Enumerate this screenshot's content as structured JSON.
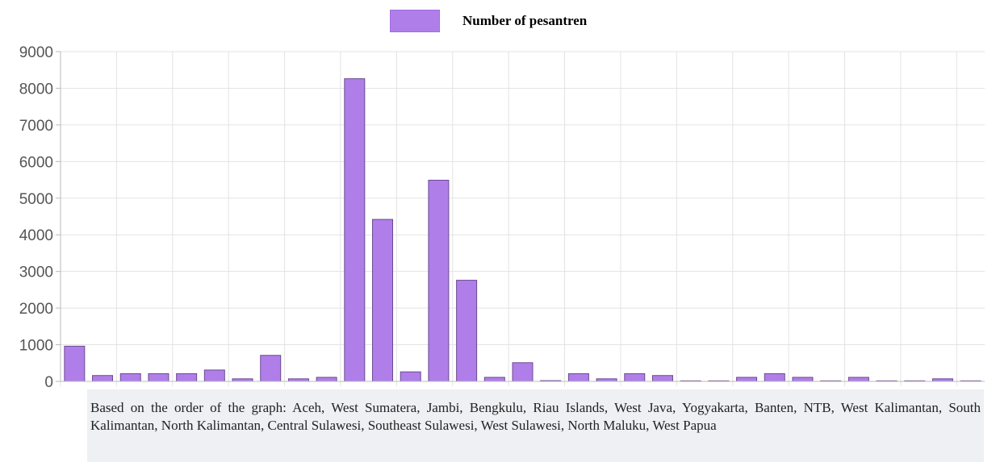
{
  "legend": {
    "label": "Number of pesantren",
    "color": "#b07ee8"
  },
  "caption": "Based on the order of the graph:  Aceh, West Sumatera, Jambi, Bengkulu, Riau Islands, West Java, Yogyakarta, Banten, NTB, West Kalimantan, South Kalimantan, North Kalimantan, Central Sulawesi, Southeast Sulawesi, West Sulawesi, North Maluku, West Papua",
  "chart_data": {
    "type": "bar",
    "title": "",
    "xlabel": "",
    "ylabel": "",
    "ylim": [
      0,
      9000
    ],
    "yticks": [
      0,
      1000,
      2000,
      3000,
      4000,
      5000,
      6000,
      7000,
      8000,
      9000
    ],
    "grid": true,
    "legend_position": "top",
    "bar_color": "#b07ee8",
    "bar_edge_color": "#6a4a92",
    "series": [
      {
        "name": "Number of pesantren",
        "values": [
          960,
          160,
          210,
          210,
          210,
          310,
          70,
          710,
          70,
          110,
          8260,
          4420,
          260,
          5490,
          2760,
          110,
          510,
          20,
          210,
          70,
          210,
          160,
          15,
          15,
          110,
          210,
          110,
          15,
          110,
          15,
          15,
          70,
          15
        ]
      }
    ]
  }
}
